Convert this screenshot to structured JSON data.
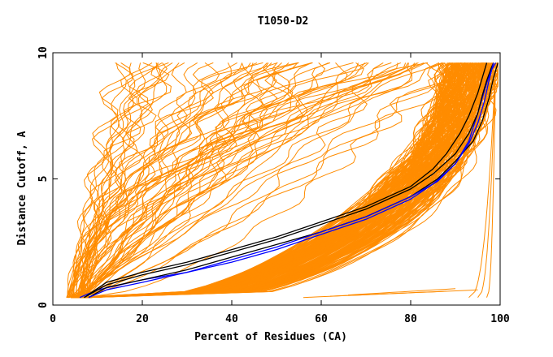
{
  "chart_data": {
    "type": "line",
    "title": "T1050-D2",
    "xlabel": "Percent of Residues (CA)",
    "ylabel": "Distance Cutoff, A",
    "xlim": [
      0,
      100
    ],
    "ylim": [
      0,
      10
    ],
    "x_ticks": [
      "0",
      "20",
      "40",
      "60",
      "80",
      "100"
    ],
    "y_ticks": [
      "0",
      "5",
      "10"
    ],
    "grid": false,
    "legend": "none",
    "colors": {
      "models": "#ff8c00",
      "reference_black": "#000000",
      "reference_blue": "#0000ff"
    },
    "series": [
      {
        "color": "#0000ff",
        "x": [
          6,
          10,
          15,
          20,
          30,
          40,
          50,
          60,
          70,
          80,
          85,
          90,
          93,
          95,
          97,
          98,
          99
        ],
        "y": [
          0.3,
          0.6,
          0.8,
          1.0,
          1.3,
          1.7,
          2.2,
          2.8,
          3.4,
          4.2,
          4.8,
          5.6,
          6.5,
          7.6,
          8.8,
          9.3,
          9.6
        ]
      },
      {
        "color": "#000000",
        "x": [
          7,
          12,
          20,
          30,
          40,
          50,
          60,
          70,
          80,
          85,
          90,
          93,
          95,
          96,
          97,
          98,
          98.5
        ],
        "y": [
          0.3,
          0.8,
          1.2,
          1.6,
          2.1,
          2.6,
          3.2,
          3.8,
          4.6,
          5.2,
          6.0,
          6.8,
          7.6,
          8.3,
          8.9,
          9.4,
          9.6
        ]
      },
      {
        "color": "#000000",
        "x": [
          7,
          12,
          20,
          30,
          40,
          50,
          60,
          70,
          80,
          85,
          88,
          91,
          93,
          95,
          96,
          97
        ],
        "y": [
          0.3,
          0.9,
          1.3,
          1.7,
          2.2,
          2.7,
          3.3,
          3.9,
          4.7,
          5.4,
          6.0,
          6.8,
          7.5,
          8.4,
          9.0,
          9.6
        ]
      },
      {
        "color": "#000000",
        "x": [
          8,
          12,
          20,
          30,
          40,
          50,
          60,
          70,
          80,
          86,
          90,
          94,
          96,
          97.5,
          98.5,
          99.5
        ],
        "y": [
          0.3,
          0.7,
          1.0,
          1.4,
          1.9,
          2.4,
          2.9,
          3.5,
          4.3,
          5.0,
          5.7,
          6.5,
          7.3,
          8.2,
          9.0,
          9.6
        ]
      },
      {
        "color": "#0000ff",
        "x": [
          8,
          12,
          20,
          30,
          40,
          50,
          60,
          70,
          80,
          86,
          90,
          93,
          95,
          96.5,
          97.5,
          98.5
        ],
        "y": [
          0.3,
          0.6,
          0.9,
          1.3,
          1.8,
          2.3,
          2.9,
          3.5,
          4.3,
          4.9,
          5.6,
          6.4,
          7.2,
          8.1,
          8.9,
          9.6
        ]
      }
    ]
  }
}
